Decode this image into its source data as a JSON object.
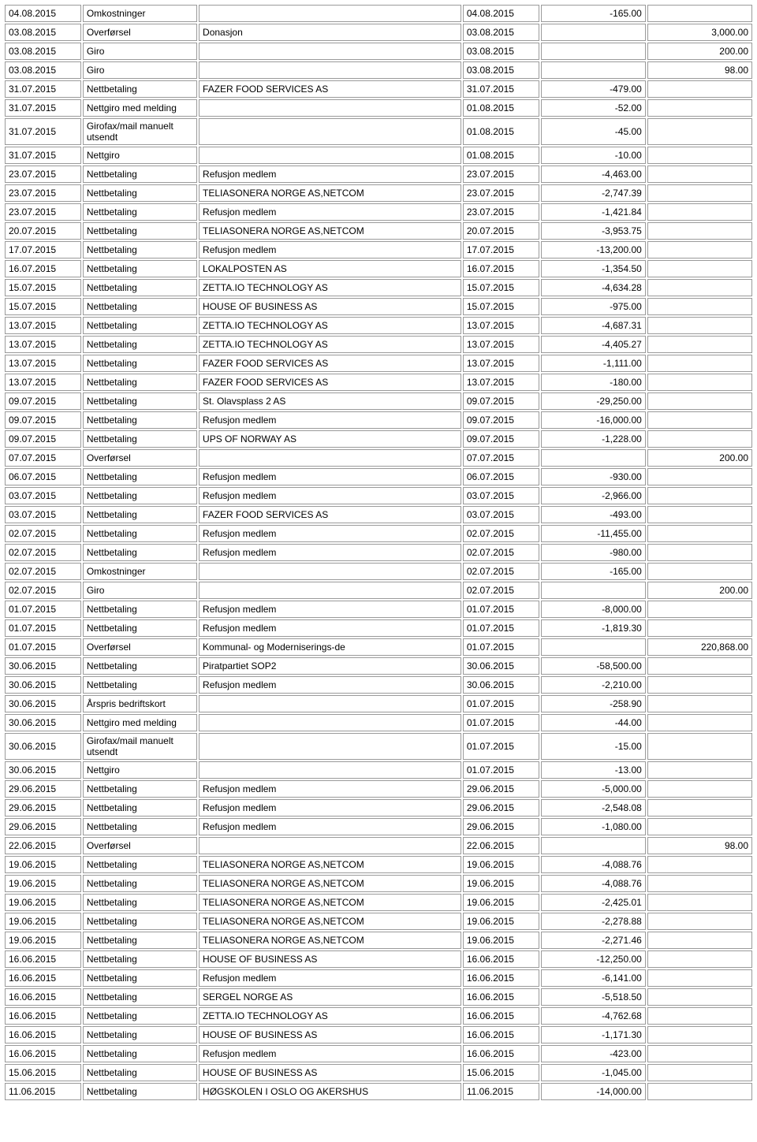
{
  "table": {
    "columns": [
      "date1",
      "type",
      "desc",
      "date2",
      "negative",
      "positive"
    ],
    "rows": [
      [
        "04.08.2015",
        "Omkostninger",
        "",
        "04.08.2015",
        "-165.00",
        ""
      ],
      [
        "03.08.2015",
        "Overførsel",
        "Donasjon",
        "03.08.2015",
        "",
        "3,000.00"
      ],
      [
        "03.08.2015",
        "Giro",
        "",
        "03.08.2015",
        "",
        "200.00"
      ],
      [
        "03.08.2015",
        "Giro",
        "",
        "03.08.2015",
        "",
        "98.00"
      ],
      [
        "31.07.2015",
        "Nettbetaling",
        "FAZER FOOD SERVICES AS",
        "31.07.2015",
        "-479.00",
        ""
      ],
      [
        "31.07.2015",
        "Nettgiro med melding",
        "",
        "01.08.2015",
        "-52.00",
        ""
      ],
      [
        "31.07.2015",
        "Girofax/mail manuelt utsendt",
        "",
        "01.08.2015",
        "-45.00",
        ""
      ],
      [
        "31.07.2015",
        "Nettgiro",
        "",
        "01.08.2015",
        "-10.00",
        ""
      ],
      [
        "23.07.2015",
        "Nettbetaling",
        "Refusjon medlem",
        "23.07.2015",
        "-4,463.00",
        ""
      ],
      [
        "23.07.2015",
        "Nettbetaling",
        "TELIASONERA NORGE AS,NETCOM",
        "23.07.2015",
        "-2,747.39",
        ""
      ],
      [
        "23.07.2015",
        "Nettbetaling",
        "Refusjon medlem",
        "23.07.2015",
        "-1,421.84",
        ""
      ],
      [
        "20.07.2015",
        "Nettbetaling",
        "TELIASONERA NORGE AS,NETCOM",
        "20.07.2015",
        "-3,953.75",
        ""
      ],
      [
        "17.07.2015",
        "Nettbetaling",
        "Refusjon medlem",
        "17.07.2015",
        "-13,200.00",
        ""
      ],
      [
        "16.07.2015",
        "Nettbetaling",
        "LOKALPOSTEN AS",
        "16.07.2015",
        "-1,354.50",
        ""
      ],
      [
        "15.07.2015",
        "Nettbetaling",
        "ZETTA.IO TECHNOLOGY AS",
        "15.07.2015",
        "-4,634.28",
        ""
      ],
      [
        "15.07.2015",
        "Nettbetaling",
        "HOUSE OF BUSINESS AS",
        "15.07.2015",
        "-975.00",
        ""
      ],
      [
        "13.07.2015",
        "Nettbetaling",
        "ZETTA.IO TECHNOLOGY AS",
        "13.07.2015",
        "-4,687.31",
        ""
      ],
      [
        "13.07.2015",
        "Nettbetaling",
        "ZETTA.IO TECHNOLOGY AS",
        "13.07.2015",
        "-4,405.27",
        ""
      ],
      [
        "13.07.2015",
        "Nettbetaling",
        "FAZER FOOD SERVICES AS",
        "13.07.2015",
        "-1,111.00",
        ""
      ],
      [
        "13.07.2015",
        "Nettbetaling",
        "FAZER FOOD SERVICES AS",
        "13.07.2015",
        "-180.00",
        ""
      ],
      [
        "09.07.2015",
        "Nettbetaling",
        "St. Olavsplass 2 AS",
        "09.07.2015",
        "-29,250.00",
        ""
      ],
      [
        "09.07.2015",
        "Nettbetaling",
        "Refusjon medlem",
        "09.07.2015",
        "-16,000.00",
        ""
      ],
      [
        "09.07.2015",
        "Nettbetaling",
        "UPS OF NORWAY AS",
        "09.07.2015",
        "-1,228.00",
        ""
      ],
      [
        "07.07.2015",
        "Overførsel",
        "",
        "07.07.2015",
        "",
        "200.00"
      ],
      [
        "06.07.2015",
        "Nettbetaling",
        "Refusjon medlem",
        "06.07.2015",
        "-930.00",
        ""
      ],
      [
        "03.07.2015",
        "Nettbetaling",
        "Refusjon medlem",
        "03.07.2015",
        "-2,966.00",
        ""
      ],
      [
        "03.07.2015",
        "Nettbetaling",
        "FAZER FOOD SERVICES AS",
        "03.07.2015",
        "-493.00",
        ""
      ],
      [
        "02.07.2015",
        "Nettbetaling",
        "Refusjon medlem",
        "02.07.2015",
        "-11,455.00",
        ""
      ],
      [
        "02.07.2015",
        "Nettbetaling",
        "Refusjon medlem",
        "02.07.2015",
        "-980.00",
        ""
      ],
      [
        "02.07.2015",
        "Omkostninger",
        "",
        "02.07.2015",
        "-165.00",
        ""
      ],
      [
        "02.07.2015",
        "Giro",
        "",
        "02.07.2015",
        "",
        "200.00"
      ],
      [
        "01.07.2015",
        "Nettbetaling",
        "Refusjon medlem",
        "01.07.2015",
        "-8,000.00",
        ""
      ],
      [
        "01.07.2015",
        "Nettbetaling",
        "Refusjon medlem",
        "01.07.2015",
        "-1,819.30",
        ""
      ],
      [
        "01.07.2015",
        "Overførsel",
        "Kommunal- og Moderniserings-de",
        "01.07.2015",
        "",
        "220,868.00"
      ],
      [
        "30.06.2015",
        "Nettbetaling",
        "Piratpartiet SOP2",
        "30.06.2015",
        "-58,500.00",
        ""
      ],
      [
        "30.06.2015",
        "Nettbetaling",
        "Refusjon medlem",
        "30.06.2015",
        "-2,210.00",
        ""
      ],
      [
        "30.06.2015",
        "Årspris bedriftskort",
        "",
        "01.07.2015",
        "-258.90",
        ""
      ],
      [
        "30.06.2015",
        "Nettgiro med melding",
        "",
        "01.07.2015",
        "-44.00",
        ""
      ],
      [
        "30.06.2015",
        "Girofax/mail manuelt utsendt",
        "",
        "01.07.2015",
        "-15.00",
        ""
      ],
      [
        "30.06.2015",
        "Nettgiro",
        "",
        "01.07.2015",
        "-13.00",
        ""
      ],
      [
        "29.06.2015",
        "Nettbetaling",
        "Refusjon medlem",
        "29.06.2015",
        "-5,000.00",
        ""
      ],
      [
        "29.06.2015",
        "Nettbetaling",
        "Refusjon medlem",
        "29.06.2015",
        "-2,548.08",
        ""
      ],
      [
        "29.06.2015",
        "Nettbetaling",
        "Refusjon medlem",
        "29.06.2015",
        "-1,080.00",
        ""
      ],
      [
        "22.06.2015",
        "Overførsel",
        "",
        "22.06.2015",
        "",
        "98.00"
      ],
      [
        "19.06.2015",
        "Nettbetaling",
        "TELIASONERA NORGE AS,NETCOM",
        "19.06.2015",
        "-4,088.76",
        ""
      ],
      [
        "19.06.2015",
        "Nettbetaling",
        "TELIASONERA NORGE AS,NETCOM",
        "19.06.2015",
        "-4,088.76",
        ""
      ],
      [
        "19.06.2015",
        "Nettbetaling",
        "TELIASONERA NORGE AS,NETCOM",
        "19.06.2015",
        "-2,425.01",
        ""
      ],
      [
        "19.06.2015",
        "Nettbetaling",
        "TELIASONERA NORGE AS,NETCOM",
        "19.06.2015",
        "-2,278.88",
        ""
      ],
      [
        "19.06.2015",
        "Nettbetaling",
        "TELIASONERA NORGE AS,NETCOM",
        "19.06.2015",
        "-2,271.46",
        ""
      ],
      [
        "16.06.2015",
        "Nettbetaling",
        "HOUSE OF BUSINESS AS",
        "16.06.2015",
        "-12,250.00",
        ""
      ],
      [
        "16.06.2015",
        "Nettbetaling",
        "Refusjon medlem",
        "16.06.2015",
        "-6,141.00",
        ""
      ],
      [
        "16.06.2015",
        "Nettbetaling",
        "SERGEL NORGE AS",
        "16.06.2015",
        "-5,518.50",
        ""
      ],
      [
        "16.06.2015",
        "Nettbetaling",
        "ZETTA.IO TECHNOLOGY AS",
        "16.06.2015",
        "-4,762.68",
        ""
      ],
      [
        "16.06.2015",
        "Nettbetaling",
        "HOUSE OF BUSINESS AS",
        "16.06.2015",
        "-1,171.30",
        ""
      ],
      [
        "16.06.2015",
        "Nettbetaling",
        "Refusjon medlem",
        "16.06.2015",
        "-423.00",
        ""
      ],
      [
        "15.06.2015",
        "Nettbetaling",
        "HOUSE OF BUSINESS AS",
        "15.06.2015",
        "-1,045.00",
        ""
      ],
      [
        "11.06.2015",
        "Nettbetaling",
        "HØGSKOLEN I OSLO OG AKERSHUS",
        "11.06.2015",
        "-14,000.00",
        ""
      ]
    ]
  }
}
